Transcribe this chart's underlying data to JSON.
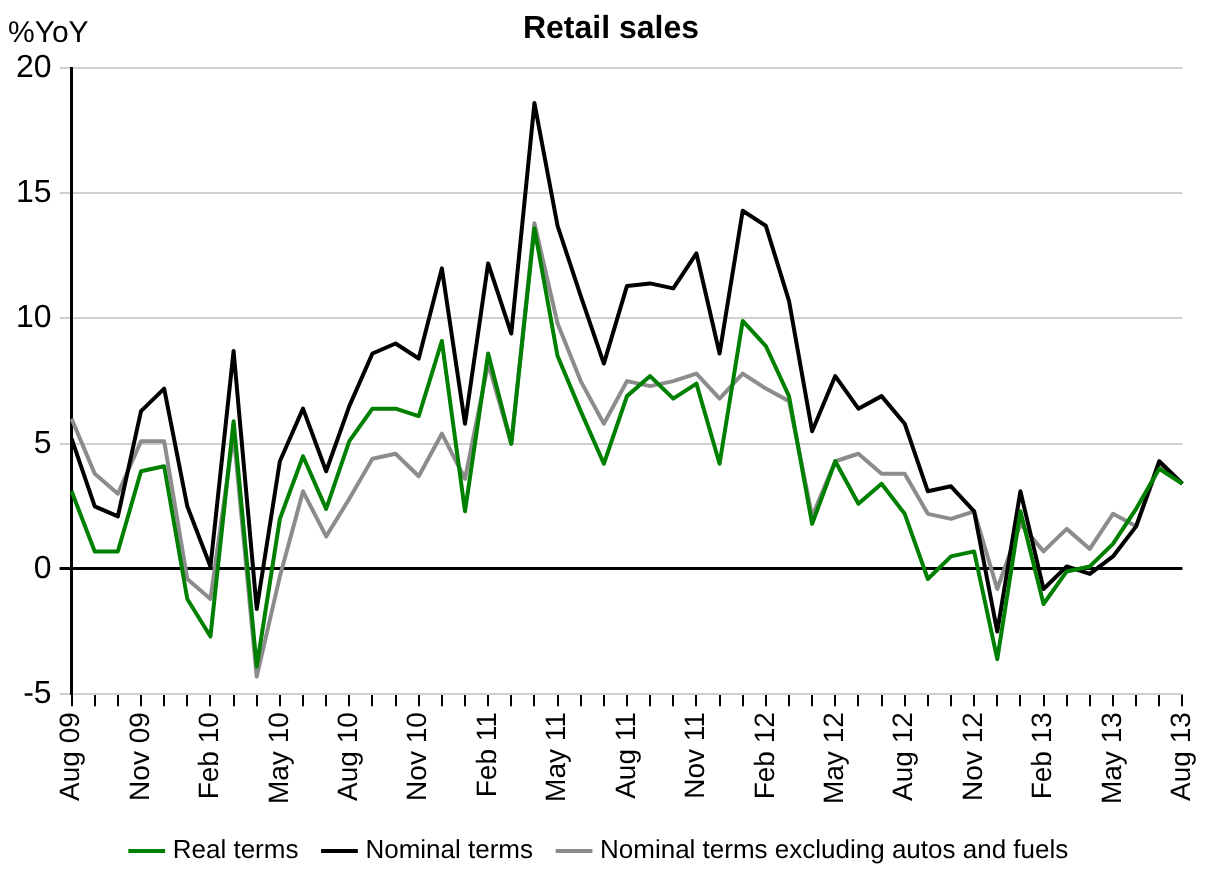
{
  "chart_data": {
    "type": "line",
    "title": "Retail sales",
    "ylabel": "%YoY",
    "categories": [
      "Aug 09",
      null,
      null,
      "Nov 09",
      null,
      null,
      "Feb 10",
      null,
      null,
      "May 10",
      null,
      null,
      "Aug 10",
      null,
      null,
      "Nov 10",
      null,
      null,
      "Feb 11",
      null,
      null,
      "May 11",
      null,
      null,
      "Aug 11",
      null,
      null,
      "Nov 11",
      null,
      null,
      "Feb 12",
      null,
      null,
      "May 12",
      null,
      null,
      "Aug 12",
      null,
      null,
      "Nov 12",
      null,
      null,
      "Feb 13",
      null,
      null,
      "May 13",
      null,
      null,
      "Aug 13"
    ],
    "series": [
      {
        "name": "Real terms",
        "color": "#008000",
        "values": [
          3.1,
          0.7,
          0.7,
          3.9,
          4.1,
          -1.2,
          -2.7,
          5.9,
          -3.9,
          2.0,
          4.5,
          2.4,
          5.1,
          6.4,
          6.4,
          6.1,
          9.1,
          2.3,
          8.6,
          5.0,
          13.6,
          8.5,
          6.3,
          4.2,
          6.9,
          7.7,
          6.8,
          7.4,
          4.2,
          9.9,
          8.9,
          6.9,
          1.8,
          4.3,
          2.6,
          3.4,
          2.2,
          -0.4,
          0.5,
          0.7,
          -3.6,
          2.3,
          -1.4,
          -0.1,
          0.1,
          1.0,
          2.4,
          4.0,
          3.4
        ]
      },
      {
        "name": "Nominal terms",
        "color": "#000000",
        "values": [
          5.2,
          2.5,
          2.1,
          6.3,
          7.2,
          2.5,
          0.1,
          8.7,
          -1.6,
          4.3,
          6.4,
          3.9,
          6.5,
          8.6,
          9.0,
          8.4,
          12.0,
          5.8,
          12.2,
          9.4,
          18.6,
          13.7,
          10.9,
          8.2,
          11.3,
          11.4,
          11.2,
          12.6,
          8.6,
          14.3,
          13.7,
          10.7,
          5.5,
          7.7,
          6.4,
          6.9,
          5.8,
          3.1,
          3.3,
          2.3,
          -2.5,
          3.1,
          -0.8,
          0.1,
          -0.2,
          0.5,
          1.7,
          4.3,
          3.4
        ]
      },
      {
        "name": "Nominal terms excluding autos and fuels",
        "color": "#8c8c8c",
        "values": [
          6.0,
          3.8,
          3.0,
          5.1,
          5.1,
          -0.4,
          -1.2,
          5.4,
          -4.3,
          -0.3,
          3.1,
          1.3,
          2.8,
          4.4,
          4.6,
          3.7,
          5.4,
          3.6,
          8.2,
          5.0,
          13.8,
          9.8,
          7.5,
          5.8,
          7.5,
          7.3,
          7.5,
          7.8,
          6.8,
          7.8,
          7.2,
          6.7,
          2.1,
          4.3,
          4.6,
          3.8,
          3.8,
          2.2,
          2.0,
          2.3,
          -0.8,
          1.8,
          0.7,
          1.6,
          0.8,
          2.2,
          1.7,
          4.2,
          3.4
        ]
      }
    ],
    "ylim": [
      -5,
      20
    ],
    "yticks": [
      -5,
      0,
      5,
      10,
      15,
      20
    ],
    "grid": "y",
    "legend": "bottom",
    "marker": "none",
    "line_style": "solid"
  }
}
